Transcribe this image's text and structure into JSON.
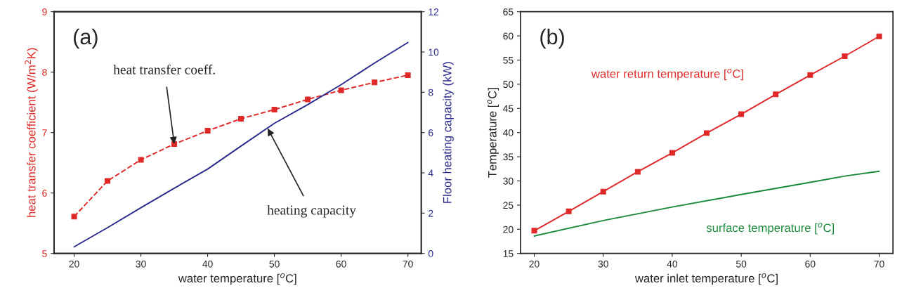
{
  "chart_data": [
    {
      "type": "line",
      "x": [
        20,
        25,
        30,
        35,
        40,
        45,
        50,
        55,
        60,
        65,
        70
      ],
      "xlabel": "water temperature [$^{o}$C]",
      "ylabel": "heat transfer coefficient (W/m$^{2}$K)",
      "y2label": "Floor heating capacity (kW)",
      "xlim": [
        17,
        72
      ],
      "xticks": [
        20,
        30,
        40,
        50,
        60,
        70
      ],
      "ylim": [
        5,
        9
      ],
      "yticks": [
        5,
        6,
        7,
        8,
        9
      ],
      "y2lim": [
        0,
        12
      ],
      "y2ticks": [
        0,
        2,
        4,
        6,
        8,
        10,
        12
      ],
      "grid": false,
      "legend": false,
      "series": [
        {
          "color": "#e02828",
          "marker": "square",
          "line_style": "dashed",
          "values": [
            5.61,
            6.2,
            6.55,
            6.81,
            7.03,
            7.23,
            7.38,
            7.55,
            7.7,
            7.83,
            7.95
          ]
        },
        {
          "color": "#2a2a8c",
          "marker": "none",
          "line_style": "solid",
          "axis": "y2",
          "values": [
            0.33,
            1.28,
            2.27,
            3.24,
            4.19,
            5.33,
            6.46,
            7.39,
            8.38,
            9.45,
            10.47
          ]
        }
      ],
      "annotations": [
        "(a)",
        {
          "text": "heat transfer coeff.",
          "x": 35,
          "y": 6.81
        },
        {
          "text": "heating capacity",
          "x": 49,
          "y": 7.07
        }
      ]
    },
    {
      "type": "line",
      "x": [
        20,
        25,
        30,
        35,
        40,
        45,
        50,
        55,
        60,
        65,
        70
      ],
      "xlabel": "water inlet temperature [$^{o}$C]",
      "ylabel": "Temperature [$^{o}$C]",
      "xlim": [
        18,
        72
      ],
      "xticks": [
        20,
        30,
        40,
        50,
        60,
        70
      ],
      "ylim": [
        15,
        65
      ],
      "yticks": [
        15,
        20,
        25,
        30,
        35,
        40,
        45,
        50,
        55,
        60,
        65
      ],
      "grid": false,
      "legend": false,
      "series": [
        {
          "name": "water return temperature [$^{o}$C]",
          "color": "#e02828",
          "marker": "square",
          "line_style": "solid",
          "values": [
            19.7,
            23.7,
            27.8,
            31.9,
            35.8,
            39.9,
            43.8,
            47.9,
            51.9,
            55.8,
            59.9
          ]
        },
        {
          "name": "surface temperature [$^{o}$C]",
          "color": "#1a8a3a",
          "marker": "none",
          "line_style": "solid",
          "x": [
            20,
            30,
            40,
            50,
            60,
            65,
            70
          ],
          "values": [
            18.6,
            21.8,
            24.6,
            27.2,
            29.7,
            31.0,
            32.0
          ]
        }
      ],
      "annotations": [
        "(b)"
      ]
    }
  ]
}
